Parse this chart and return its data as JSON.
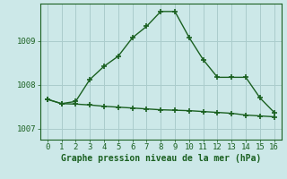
{
  "xlabel": "Graphe pression niveau de la mer (hPa)",
  "background_color": "#cce8e8",
  "grid_color": "#aacccc",
  "line_color": "#1a6020",
  "xlim": [
    -0.5,
    16.5
  ],
  "ylim": [
    1006.75,
    1009.85
  ],
  "yticks": [
    1007,
    1008,
    1009
  ],
  "xticks": [
    0,
    1,
    2,
    3,
    4,
    5,
    6,
    7,
    8,
    9,
    10,
    11,
    12,
    13,
    14,
    15,
    16
  ],
  "line1_x": [
    0,
    1,
    2,
    3,
    4,
    5,
    6,
    7,
    8,
    9,
    10,
    11,
    12,
    13,
    14,
    15,
    16
  ],
  "line1_y": [
    1007.67,
    1007.57,
    1007.62,
    1008.12,
    1008.42,
    1008.65,
    1009.07,
    1009.33,
    1009.67,
    1009.67,
    1009.08,
    1008.57,
    1008.17,
    1008.17,
    1008.17,
    1007.7,
    1007.37
  ],
  "line2_x": [
    0,
    1,
    2,
    3,
    4,
    5,
    6,
    7,
    8,
    9,
    10,
    11,
    12,
    13,
    14,
    15,
    16
  ],
  "line2_y": [
    1007.67,
    1007.57,
    1007.56,
    1007.54,
    1007.51,
    1007.49,
    1007.47,
    1007.45,
    1007.43,
    1007.42,
    1007.41,
    1007.39,
    1007.37,
    1007.35,
    1007.31,
    1007.29,
    1007.27
  ],
  "marker": "+",
  "markersize": 4,
  "linewidth": 1.0,
  "xlabel_fontsize": 7,
  "tick_fontsize": 6.5
}
